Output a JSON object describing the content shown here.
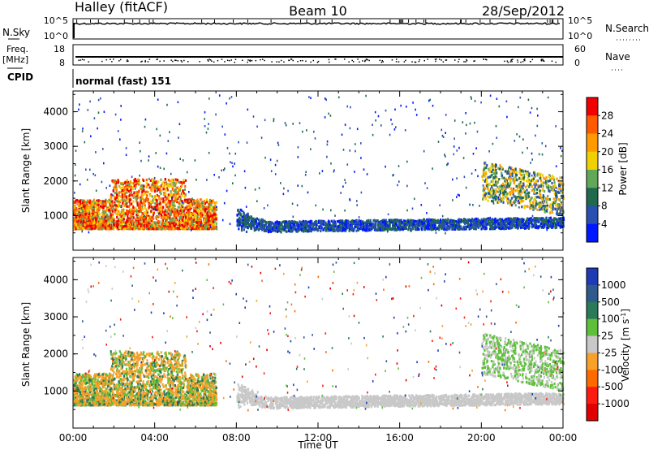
{
  "header": {
    "station": "Halley (fitACF)",
    "beam": "Beam 10",
    "date": "28/Sep/2012"
  },
  "status_panels": {
    "nsky_label": "N.Sky",
    "nsearch_label": "N.Search",
    "nsky_ticks": [
      "10^5",
      "10^0"
    ],
    "nsearch_ticks": [
      "10^5",
      "10^0"
    ],
    "freq_label_1": "Freq.",
    "freq_label_2": "[MHz]",
    "freq_ticks": [
      "18",
      "8"
    ],
    "nave_label": "Nave",
    "nave_ticks": [
      "60",
      "0"
    ],
    "cpid_label": "CPID",
    "cpid_value": "normal (fast) 151"
  },
  "chart_data": [
    {
      "type": "heatmap",
      "panel": "power",
      "ylabel": "Slant Range [km]",
      "xlabel": "",
      "ylim": [
        0,
        4600
      ],
      "yticks": [
        "1000",
        "2000",
        "3000",
        "4000"
      ],
      "colorbar_label": "Power [dB]",
      "colorbar_ticks": [
        "28",
        "24",
        "20",
        "16",
        "12",
        "8",
        "4"
      ],
      "colors": [
        "#f00000",
        "#ff5a00",
        "#ff9a00",
        "#f0d000",
        "#62a85a",
        "#1f6a4c",
        "#2a4fb0",
        "#0018ff"
      ],
      "features": [
        {
          "time_h": [
            0.0,
            7.0
          ],
          "range_km": [
            650,
            2100
          ],
          "description_value": "strong echoes 20-30 dB"
        },
        {
          "time_h": [
            8.0,
            24.0
          ],
          "range_km": [
            700,
            1200
          ],
          "description_value": "weak echoes 4-12 dB"
        },
        {
          "time_h": [
            20.0,
            24.0
          ],
          "range_km": [
            1500,
            2600
          ],
          "description_value": "echoes 8-20 dB"
        }
      ]
    },
    {
      "type": "heatmap",
      "panel": "velocity",
      "ylabel": "Slant Range [km]",
      "xlabel": "Time UT",
      "ylim": [
        0,
        4600
      ],
      "yticks": [
        "1000",
        "2000",
        "3000",
        "4000"
      ],
      "xticks": [
        "00:00",
        "04:00",
        "08:00",
        "12:00",
        "16:00",
        "20:00",
        "00:00"
      ],
      "colorbar_label": "Velocity [m s",
      "colorbar_label_sup": "-1",
      "colorbar_label_end": "]",
      "colorbar_ticks": [
        "1000",
        "500",
        "100",
        "25",
        "-25",
        "-100",
        "-500",
        "-1000"
      ],
      "colors": [
        "#1e3ab4",
        "#2f5a8c",
        "#2a7a58",
        "#5ec03a",
        "#c8c8c8",
        "#f7a02a",
        "#ff6a00",
        "#ff1a10",
        "#e00000"
      ],
      "features": [
        {
          "time_h": [
            0.0,
            7.0
          ],
          "range_km": [
            650,
            2100
          ],
          "description_value": "-100 to 100 m/s"
        },
        {
          "time_h": [
            8.0,
            24.0
          ],
          "range_km": [
            700,
            1200
          ],
          "description_value": "-25 to 25 m/s"
        },
        {
          "time_h": [
            20.0,
            24.0
          ],
          "range_km": [
            1500,
            2600
          ],
          "description_value": "25 to 100 m/s"
        }
      ]
    }
  ]
}
